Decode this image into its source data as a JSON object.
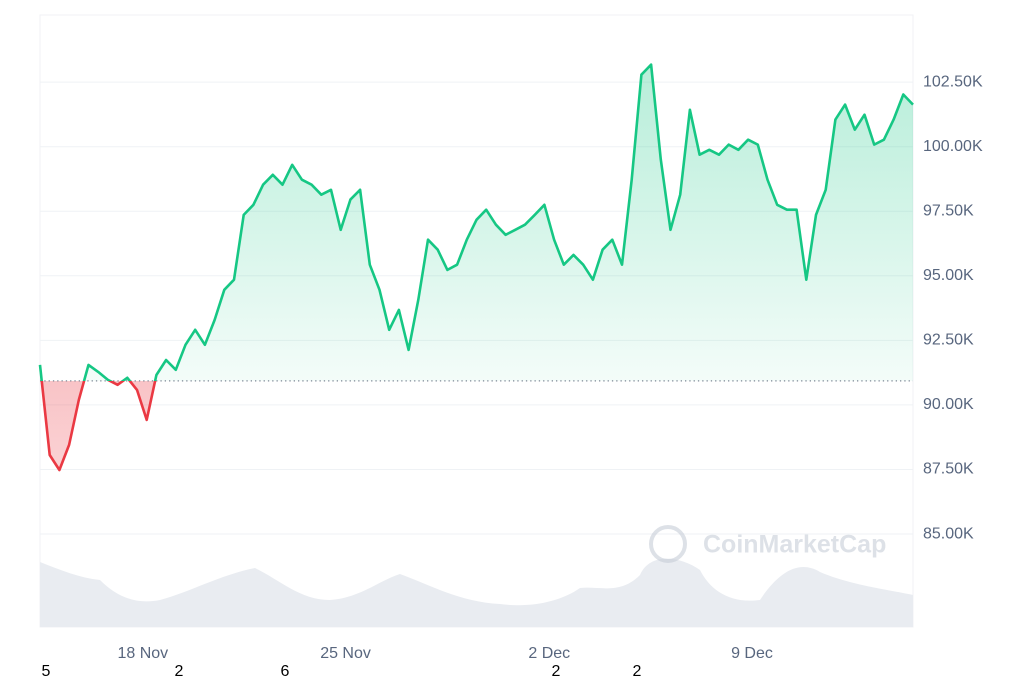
{
  "chart_data": {
    "type": "line",
    "watermark": "CoinMarketCap",
    "baseline": 90930,
    "color_up": "#16c784",
    "color_down": "#ea3943",
    "values": [
      91550,
      88060,
      87480,
      88450,
      90190,
      91550,
      91280,
      90970,
      90780,
      91050,
      90580,
      89420,
      91160,
      91740,
      91360,
      92330,
      92910,
      92330,
      93290,
      94460,
      94850,
      97360,
      97750,
      98530,
      98910,
      98530,
      99300,
      98720,
      98530,
      98140,
      98330,
      96780,
      97950,
      98330,
      95430,
      94460,
      92910,
      93680,
      92130,
      94070,
      96400,
      96010,
      95230,
      95430,
      96400,
      97170,
      97560,
      96980,
      96590,
      96780,
      96980,
      97360,
      97750,
      96400,
      95430,
      95810,
      95430,
      94850,
      96010,
      96400,
      95430,
      98720,
      102790,
      103180,
      99500,
      96780,
      98140,
      101430,
      99690,
      99880,
      99690,
      100080,
      99880,
      100270,
      100080,
      98720,
      97750,
      97560,
      97560,
      94850,
      97360,
      98330,
      101050,
      101630,
      100660,
      101240,
      100080,
      100270,
      101050,
      102020,
      101630
    ],
    "xticks": [
      {
        "value": 10.6,
        "label": "18 Nov"
      },
      {
        "value": 31.5,
        "label": "25 Nov"
      },
      {
        "value": 52.5,
        "label": "2 Dec"
      },
      {
        "value": 73.4,
        "label": "9 Dec"
      }
    ],
    "ylim": [
      81400,
      105100
    ],
    "yticks": [
      {
        "value": 85000,
        "label": "85.00K"
      },
      {
        "value": 87500,
        "label": "87.50K"
      },
      {
        "value": 90000,
        "label": "90.00K"
      },
      {
        "value": 92500,
        "label": "92.50K"
      },
      {
        "value": 95000,
        "label": "95.00K"
      },
      {
        "value": 97500,
        "label": "97.50K"
      },
      {
        "value": 100000,
        "label": "100.00K"
      },
      {
        "value": 102500,
        "label": "102.50K"
      }
    ],
    "grid": true,
    "stray_labels": [
      "5",
      "2",
      "6",
      "2",
      "2"
    ]
  }
}
